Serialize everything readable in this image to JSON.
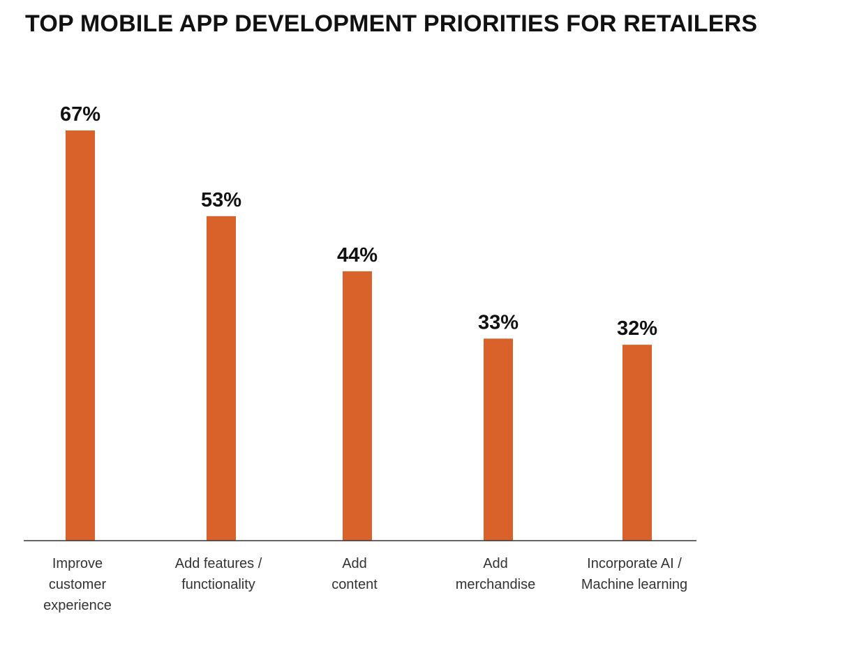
{
  "chart_data": {
    "type": "bar",
    "title": "TOP MOBILE APP DEVELOPMENT PRIORITIES FOR RETAILERS",
    "xlabel": "",
    "ylabel": "",
    "categories": [
      [
        "Improve",
        "customer",
        "experience"
      ],
      [
        "Add features /",
        "functionality"
      ],
      [
        "Add",
        "content"
      ],
      [
        "Add",
        "merchandise"
      ],
      [
        "Incorporate AI /",
        "Machine learning"
      ]
    ],
    "values": [
      67,
      53,
      44,
      33,
      32
    ],
    "value_labels": [
      "67%",
      "53%",
      "44%",
      "33%",
      "32%"
    ],
    "ylim": [
      0,
      67
    ],
    "grid": false,
    "legend": "none",
    "colors": {
      "bar": "#D9622B",
      "baseline": "#333333",
      "text": "#111111"
    }
  }
}
